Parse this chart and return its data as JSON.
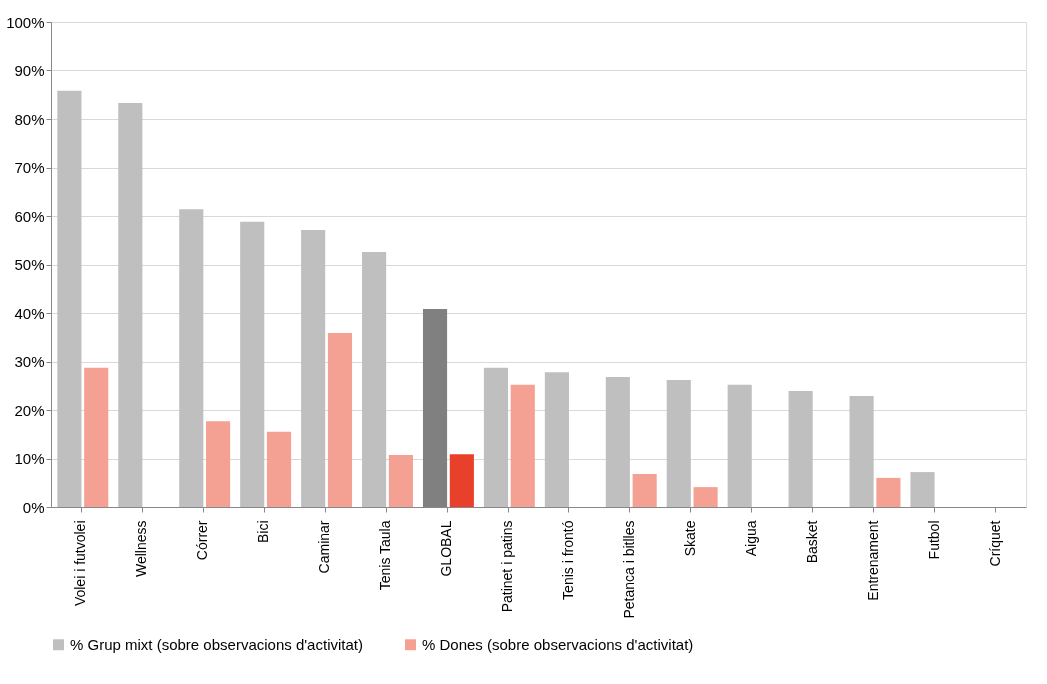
{
  "chart_data": {
    "type": "bar",
    "categories": [
      "Volei i futvolei",
      "Wellness",
      "Córrer",
      "Bici",
      "Caminar",
      "Tenis Taula",
      "GLOBAL",
      "Patinet i patins",
      "Tenis i frontó",
      "Petanca i bitlles",
      "Skate",
      "Aigua",
      "Basket",
      "Entrenament",
      "Futbol",
      "Críquet"
    ],
    "series": [
      {
        "name": "% Grup mixt (sobre observacions d'activitat)",
        "color": "#bfbfbf",
        "colors": [
          "#bfbfbf",
          "#bfbfbf",
          "#bfbfbf",
          "#bfbfbf",
          "#bfbfbf",
          "#bfbfbf",
          "#808080",
          "#bfbfbf",
          "#bfbfbf",
          "#bfbfbf",
          "#bfbfbf",
          "#bfbfbf",
          "#bfbfbf",
          "#bfbfbf",
          "#bfbfbf",
          "#bfbfbf"
        ],
        "values": [
          85.8,
          83.3,
          61.4,
          58.8,
          57.1,
          52.6,
          40.8,
          28.7,
          27.8,
          26.8,
          26.2,
          25.2,
          23.9,
          22.9,
          7.2,
          0
        ]
      },
      {
        "name": "% Dones (sobre observacions d'activitat)",
        "color": "#f4a092",
        "colors": [
          "#f4a092",
          "#f4a092",
          "#f4a092",
          "#f4a092",
          "#f4a092",
          "#f4a092",
          "#e8402a",
          "#f4a092",
          "#f4a092",
          "#f4a092",
          "#f4a092",
          "#f4a092",
          "#f4a092",
          "#f4a092",
          "#f4a092",
          "#f4a092"
        ],
        "values": [
          28.7,
          0,
          17.7,
          15.5,
          35.9,
          10.7,
          10.9,
          25.2,
          0,
          6.8,
          4.1,
          0,
          0,
          6.0,
          0,
          0
        ]
      }
    ],
    "ylim": [
      0,
      100
    ],
    "yticks": [
      {
        "value": 0,
        "label": "0%"
      },
      {
        "value": 10,
        "label": "10%"
      },
      {
        "value": 20,
        "label": "20%"
      },
      {
        "value": 30,
        "label": "30%"
      },
      {
        "value": 40,
        "label": "40%"
      },
      {
        "value": 50,
        "label": "50%"
      },
      {
        "value": 60,
        "label": "60%"
      },
      {
        "value": 70,
        "label": "70%"
      },
      {
        "value": 80,
        "label": "80%"
      },
      {
        "value": 90,
        "label": "90%"
      },
      {
        "value": 100,
        "label": "100%"
      }
    ],
    "grid": "y",
    "legend": "bottom"
  }
}
